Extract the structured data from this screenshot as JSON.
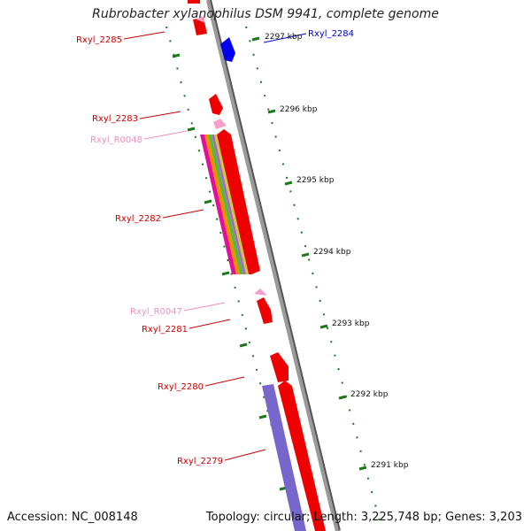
{
  "title": "Rubrobacter xylanophilus DSM 9941, complete genome",
  "footer": {
    "accession": "Accession: NC_008148",
    "summary": "Topology: circular; Length: 3,225,748 bp; Genes: 3,203"
  },
  "colors": {
    "gene_forward": "#ee0000",
    "gene_reverse": "#0000ee",
    "rna": "#f4a0c8",
    "gene_label": "#cc0000",
    "rna_label": "#f090c0",
    "reverse_label": "#0000cc",
    "kbp_tick": "#1a7a1a",
    "backbone": "#8a8a8a",
    "domain_purple": "#7766cc"
  },
  "scale_labels": [
    "2297 kbp",
    "2296 kbp",
    "2295 kbp",
    "2294 kbp",
    "2293 kbp",
    "2292 kbp",
    "2291 kbp"
  ],
  "genes": [
    {
      "label": "Rxyl_2285",
      "type": "gene"
    },
    {
      "label": "Rxyl_2284",
      "type": "gene_reverse"
    },
    {
      "label": "Rxyl_2283",
      "type": "gene"
    },
    {
      "label": "Rxyl_R0048",
      "type": "rna"
    },
    {
      "label": "Rxyl_2282",
      "type": "gene"
    },
    {
      "label": "Rxyl_R0047",
      "type": "rna"
    },
    {
      "label": "Rxyl_2281",
      "type": "gene"
    },
    {
      "label": "Rxyl_2280",
      "type": "gene"
    },
    {
      "label": "Rxyl_2279",
      "type": "gene"
    }
  ]
}
